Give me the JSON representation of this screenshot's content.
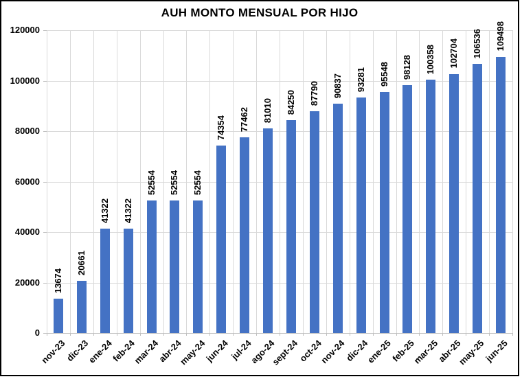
{
  "window": {
    "background_color": "#FFFFFF",
    "border_color": "#000000"
  },
  "chart_data": {
    "type": "bar",
    "title": "AUH MONTO MENSUAL POR HIJO",
    "categories": [
      "nov-23",
      "dic-23",
      "ene-24",
      "feb-24",
      "mar-24",
      "abr-24",
      "may-24",
      "jun-24",
      "jul-24",
      "ago-24",
      "sept-24",
      "oct-24",
      "nov-24",
      "dic-24",
      "ene-25",
      "feb-25",
      "mar-25",
      "abr-25",
      "may-25",
      "jun-25"
    ],
    "values": [
      13674,
      20661,
      41322,
      41322,
      52554,
      52554,
      52554,
      74354,
      77462,
      81010,
      84250,
      87790,
      90837,
      93281,
      95548,
      98128,
      100358,
      102704,
      106536,
      109498
    ],
    "xlabel": "",
    "ylabel": "",
    "ylim": [
      0,
      120000
    ],
    "yticks": [
      0,
      20000,
      40000,
      60000,
      80000,
      100000,
      120000
    ],
    "grid": "horizontal-and-vertical",
    "legend_position": "none",
    "data_labels": "above-bars-rotated-90",
    "x_tick_rotation": 45,
    "bar_color": "#4472C4",
    "gridline_color": "#D9D9D9",
    "axis_color": "#BFBFBF",
    "text_color": "#000000"
  }
}
